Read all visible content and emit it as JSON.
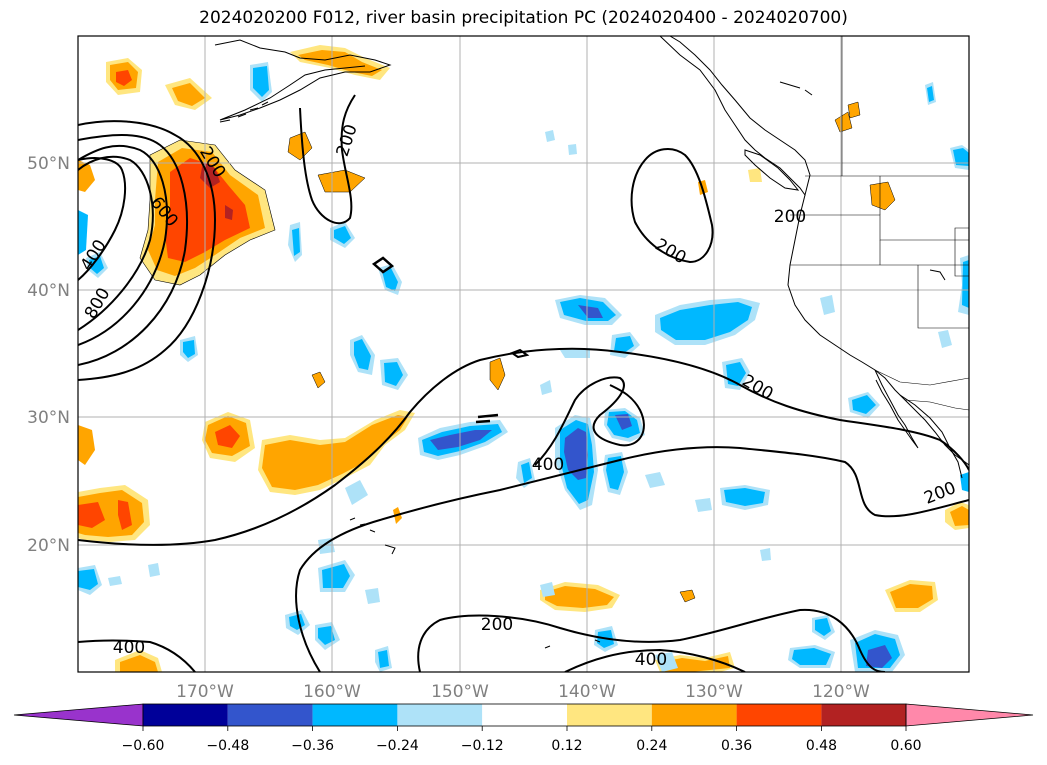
{
  "title": "2024020200 F012, river basin precipitation PC (2024020400 - 2024020700)",
  "x_ticks": [
    "170°W",
    "160°W",
    "150°W",
    "140°W",
    "130°W",
    "120°W"
  ],
  "y_ticks": [
    "50°N",
    "40°N",
    "30°N",
    "20°N"
  ],
  "colorbar": {
    "colors": [
      "#9933cc",
      "#000099",
      "#3355cc",
      "#00b8ff",
      "#aee2f8",
      "#ffffff",
      "#ffe680",
      "#ffa500",
      "#ff4500",
      "#b22222",
      "#ff88aa"
    ],
    "labels": [
      "−0.60",
      "−0.48",
      "−0.36",
      "−0.24",
      "−0.12",
      "0.12",
      "0.24",
      "0.36",
      "0.48",
      "0.60"
    ]
  },
  "contour_labels": [
    "200",
    "200",
    "600",
    "400",
    "800",
    "200",
    "200",
    "200",
    "400",
    "200",
    "200",
    "400",
    "400"
  ],
  "colors": {
    "positive_light": "#ffe680",
    "positive_mid": "#ffa500",
    "positive_strong": "#ff4500",
    "positive_max": "#b22222",
    "negative_light": "#aee2f8",
    "negative_mid": "#00b8ff",
    "negative_strong": "#3355cc",
    "grid": "#b0b0b0"
  }
}
